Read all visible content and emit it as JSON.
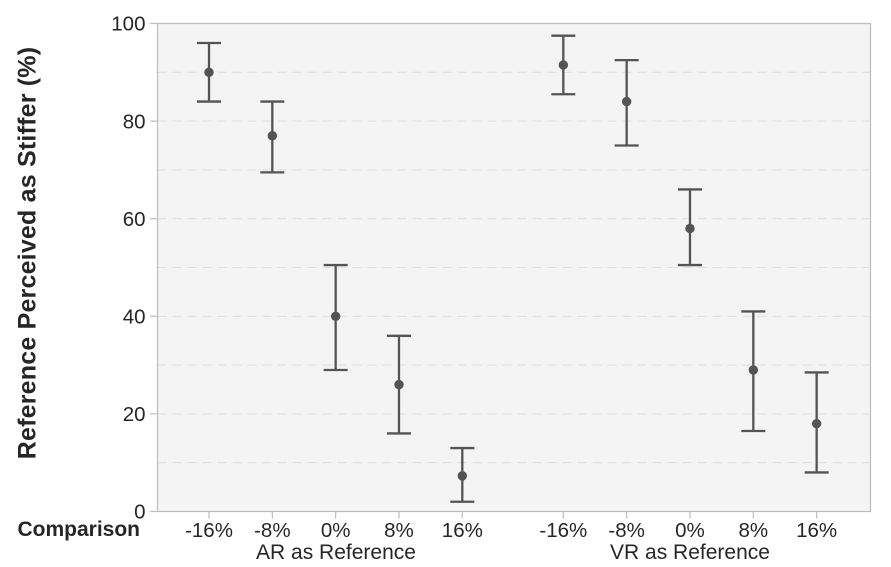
{
  "chart_data": {
    "type": "scatter",
    "title": "",
    "ylabel": "Reference Perceived as Stiffer (%)",
    "xlabel_prefix": "Comparison",
    "ylim": [
      0,
      100
    ],
    "yticks": [
      0,
      20,
      40,
      60,
      80,
      100
    ],
    "gridline_step": 10,
    "grid_style": "dashed",
    "legend_position": "none",
    "marker": "circle-with-error-bars",
    "groups": [
      {
        "label": "AR as Reference",
        "categories": [
          "-16%",
          "-8%",
          "0%",
          "8%",
          "16%"
        ],
        "means": [
          90,
          77,
          40,
          26,
          7.3
        ],
        "ci_low": [
          84,
          69.5,
          29,
          16,
          2
        ],
        "ci_high": [
          96,
          84,
          50.5,
          36,
          13
        ]
      },
      {
        "label": "VR as Reference",
        "categories": [
          "-16%",
          "-8%",
          "0%",
          "8%",
          "16%"
        ],
        "means": [
          91.5,
          84,
          58,
          29,
          18
        ],
        "ci_low": [
          85.5,
          75,
          50.5,
          16.5,
          8
        ],
        "ci_high": [
          97.5,
          92.5,
          66,
          41,
          28.5
        ]
      }
    ],
    "colors": {
      "marker": "#545454",
      "plot_bg": "#f4f4f4",
      "grid": "#e0e0e0",
      "border": "#bdbdbd",
      "text": "#262626"
    }
  }
}
